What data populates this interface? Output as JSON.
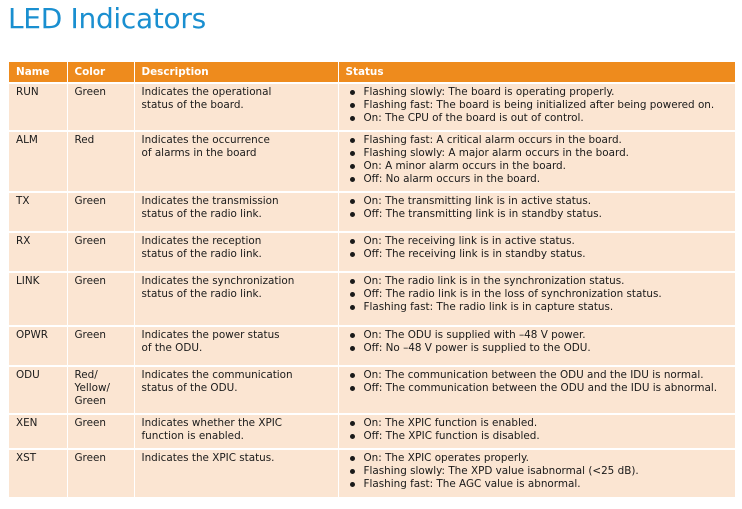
{
  "title": "LED Indicators",
  "header": {
    "name": "Name",
    "color": "Color",
    "description": "Description",
    "status": "Status"
  },
  "rows": [
    {
      "name": "RUN",
      "color": "Green",
      "description": "Indicates the operational\nstatus of the board.",
      "status": [
        "Flashing slowly: The board is operating properly.",
        "Flashing fast: The board is being initialized after being powered on.",
        "On: The CPU of the board is out of control."
      ]
    },
    {
      "name": "ALM",
      "color": "Red",
      "description": "Indicates the occurrence\nof alarms in the board",
      "status": [
        "Flashing fast: A critical alarm occurs in the board.",
        "Flashing slowly: A major alarm occurs in the board.",
        "On: A minor alarm occurs in the board.",
        "Off: No alarm occurs in the board."
      ]
    },
    {
      "name": "TX",
      "color": "Green",
      "description": "Indicates the transmission\nstatus of the radio link.",
      "status": [
        "On: The transmitting link is in active status.",
        "Off: The transmitting link is in standby status."
      ]
    },
    {
      "name": "RX",
      "color": "Green",
      "description": "Indicates the reception\nstatus of the radio link.",
      "status": [
        "On: The receiving link is in active status.",
        "Off: The receiving link is in standby status."
      ]
    },
    {
      "name": "LINK",
      "color": "Green",
      "description": "Indicates the synchronization\nstatus of the radio link.",
      "status": [
        "On: The radio link is in the synchronization status.",
        "Off: The radio link is in the loss of synchronization status.",
        "Flashing fast: The radio link is in capture status."
      ]
    },
    {
      "name": "OPWR",
      "color": "Green",
      "description": "Indicates the power status\nof the ODU.",
      "status": [
        "On: The ODU is supplied with –48 V power.",
        "Off: No –48 V power is supplied to the ODU."
      ]
    },
    {
      "name": "ODU",
      "color": "Red/\nYellow/\nGreen",
      "description": "Indicates the communication\nstatus of the ODU.",
      "status": [
        "On: The communication between the ODU and the IDU is normal.",
        "Off: The communication between the ODU and the IDU is abnormal."
      ]
    },
    {
      "name": "XEN",
      "color": "Green",
      "description": "Indicates whether the XPIC\nfunction is enabled.",
      "status": [
        "On: The XPIC function is enabled.",
        "Off: The XPIC function is disabled."
      ]
    },
    {
      "name": "XST",
      "color": "Green",
      "description": "Indicates the XPIC  status.",
      "status": [
        "On: The XPIC operates properly.",
        "Flashing slowly: The XPD value isabnormal (<25 dB).",
        "Flashing fast: The AGC value is abnormal."
      ]
    }
  ]
}
